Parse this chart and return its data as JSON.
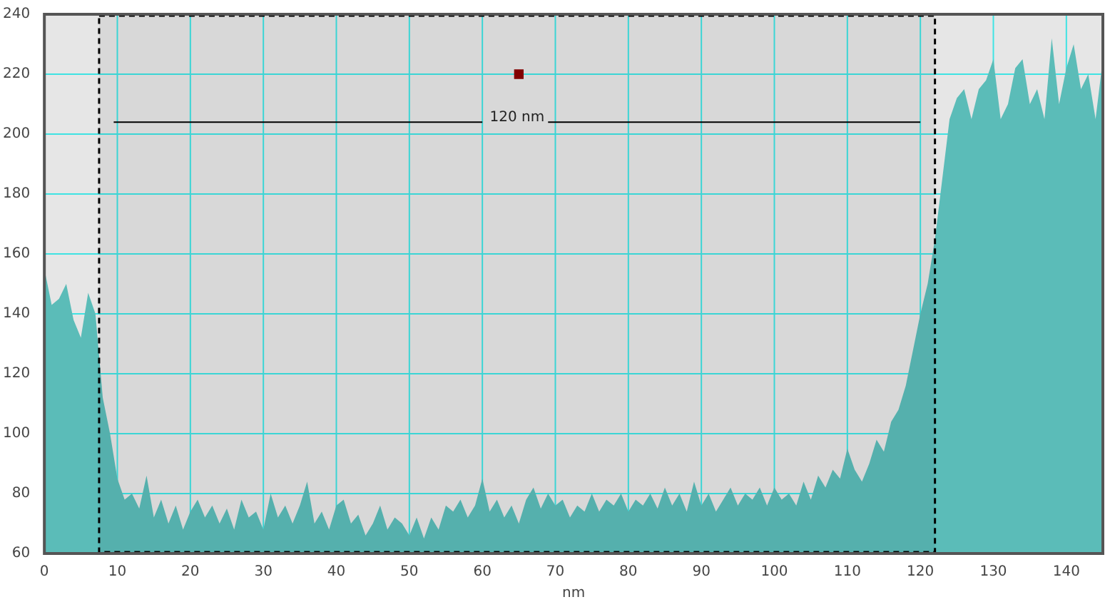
{
  "chart_data": {
    "type": "area",
    "xlabel": "nm",
    "xlim": [
      0,
      145
    ],
    "xticks": [
      0,
      10,
      20,
      30,
      40,
      50,
      60,
      70,
      80,
      90,
      100,
      110,
      120,
      130,
      140
    ],
    "ylim": [
      60,
      240
    ],
    "yticks": [
      60,
      80,
      100,
      120,
      140,
      160,
      180,
      200,
      220,
      240
    ],
    "grid": true,
    "legend": false,
    "series": [
      {
        "color": "#5bbcb8",
        "x": [
          0,
          1,
          2,
          3,
          4,
          5,
          6,
          7,
          8,
          9,
          10,
          11,
          12,
          13,
          14,
          15,
          16,
          17,
          18,
          19,
          20,
          21,
          22,
          23,
          24,
          25,
          26,
          27,
          28,
          29,
          30,
          31,
          32,
          33,
          34,
          35,
          36,
          37,
          38,
          39,
          40,
          41,
          42,
          43,
          44,
          45,
          46,
          47,
          48,
          49,
          50,
          51,
          52,
          53,
          54,
          55,
          56,
          57,
          58,
          59,
          60,
          61,
          62,
          63,
          64,
          65,
          66,
          67,
          68,
          69,
          70,
          71,
          72,
          73,
          74,
          75,
          76,
          77,
          78,
          79,
          80,
          81,
          82,
          83,
          84,
          85,
          86,
          87,
          88,
          89,
          90,
          91,
          92,
          93,
          94,
          95,
          96,
          97,
          98,
          99,
          100,
          101,
          102,
          103,
          104,
          105,
          106,
          107,
          108,
          109,
          110,
          111,
          112,
          113,
          114,
          115,
          116,
          117,
          118,
          119,
          120,
          121,
          122,
          123,
          124,
          125,
          126,
          127,
          128,
          129,
          130,
          131,
          132,
          133,
          134,
          135,
          136,
          137,
          138,
          139,
          140,
          141,
          142,
          143,
          144,
          145
        ],
        "values": [
          155,
          143,
          145,
          150,
          138,
          132,
          147,
          140,
          112,
          100,
          85,
          78,
          80,
          75,
          86,
          72,
          78,
          70,
          76,
          68,
          74,
          78,
          72,
          76,
          70,
          75,
          68,
          78,
          72,
          74,
          68,
          80,
          72,
          76,
          70,
          76,
          84,
          70,
          74,
          68,
          76,
          78,
          70,
          73,
          66,
          70,
          76,
          68,
          72,
          70,
          66,
          72,
          65,
          72,
          68,
          76,
          74,
          78,
          72,
          76,
          85,
          74,
          78,
          72,
          76,
          70,
          78,
          82,
          75,
          80,
          76,
          78,
          72,
          76,
          74,
          80,
          74,
          78,
          76,
          80,
          74,
          78,
          76,
          80,
          75,
          82,
          76,
          80,
          74,
          84,
          76,
          80,
          74,
          78,
          82,
          76,
          80,
          78,
          82,
          76,
          82,
          78,
          80,
          76,
          84,
          78,
          86,
          82,
          88,
          85,
          95,
          88,
          84,
          90,
          98,
          94,
          104,
          108,
          116,
          128,
          140,
          150,
          165,
          185,
          205,
          212,
          215,
          205,
          215,
          218,
          225,
          205,
          210,
          222,
          225,
          210,
          215,
          205,
          232,
          210,
          222,
          230,
          215,
          220,
          205,
          225
        ]
      },
      {
        "type": "line",
        "color": "#000000",
        "x": [
          9.5,
          60,
          65,
          69,
          120
        ],
        "values": [
          204,
          204,
          null,
          204,
          204
        ]
      },
      {
        "type": "scatter",
        "color": "#8b0000",
        "marker": "square",
        "x": [
          65
        ],
        "values": [
          220
        ]
      }
    ],
    "bands": [
      {
        "axis": "x",
        "from": 7.5,
        "to": 122,
        "color": "#000000"
      }
    ],
    "annotations": [
      "120 nm"
    ]
  }
}
